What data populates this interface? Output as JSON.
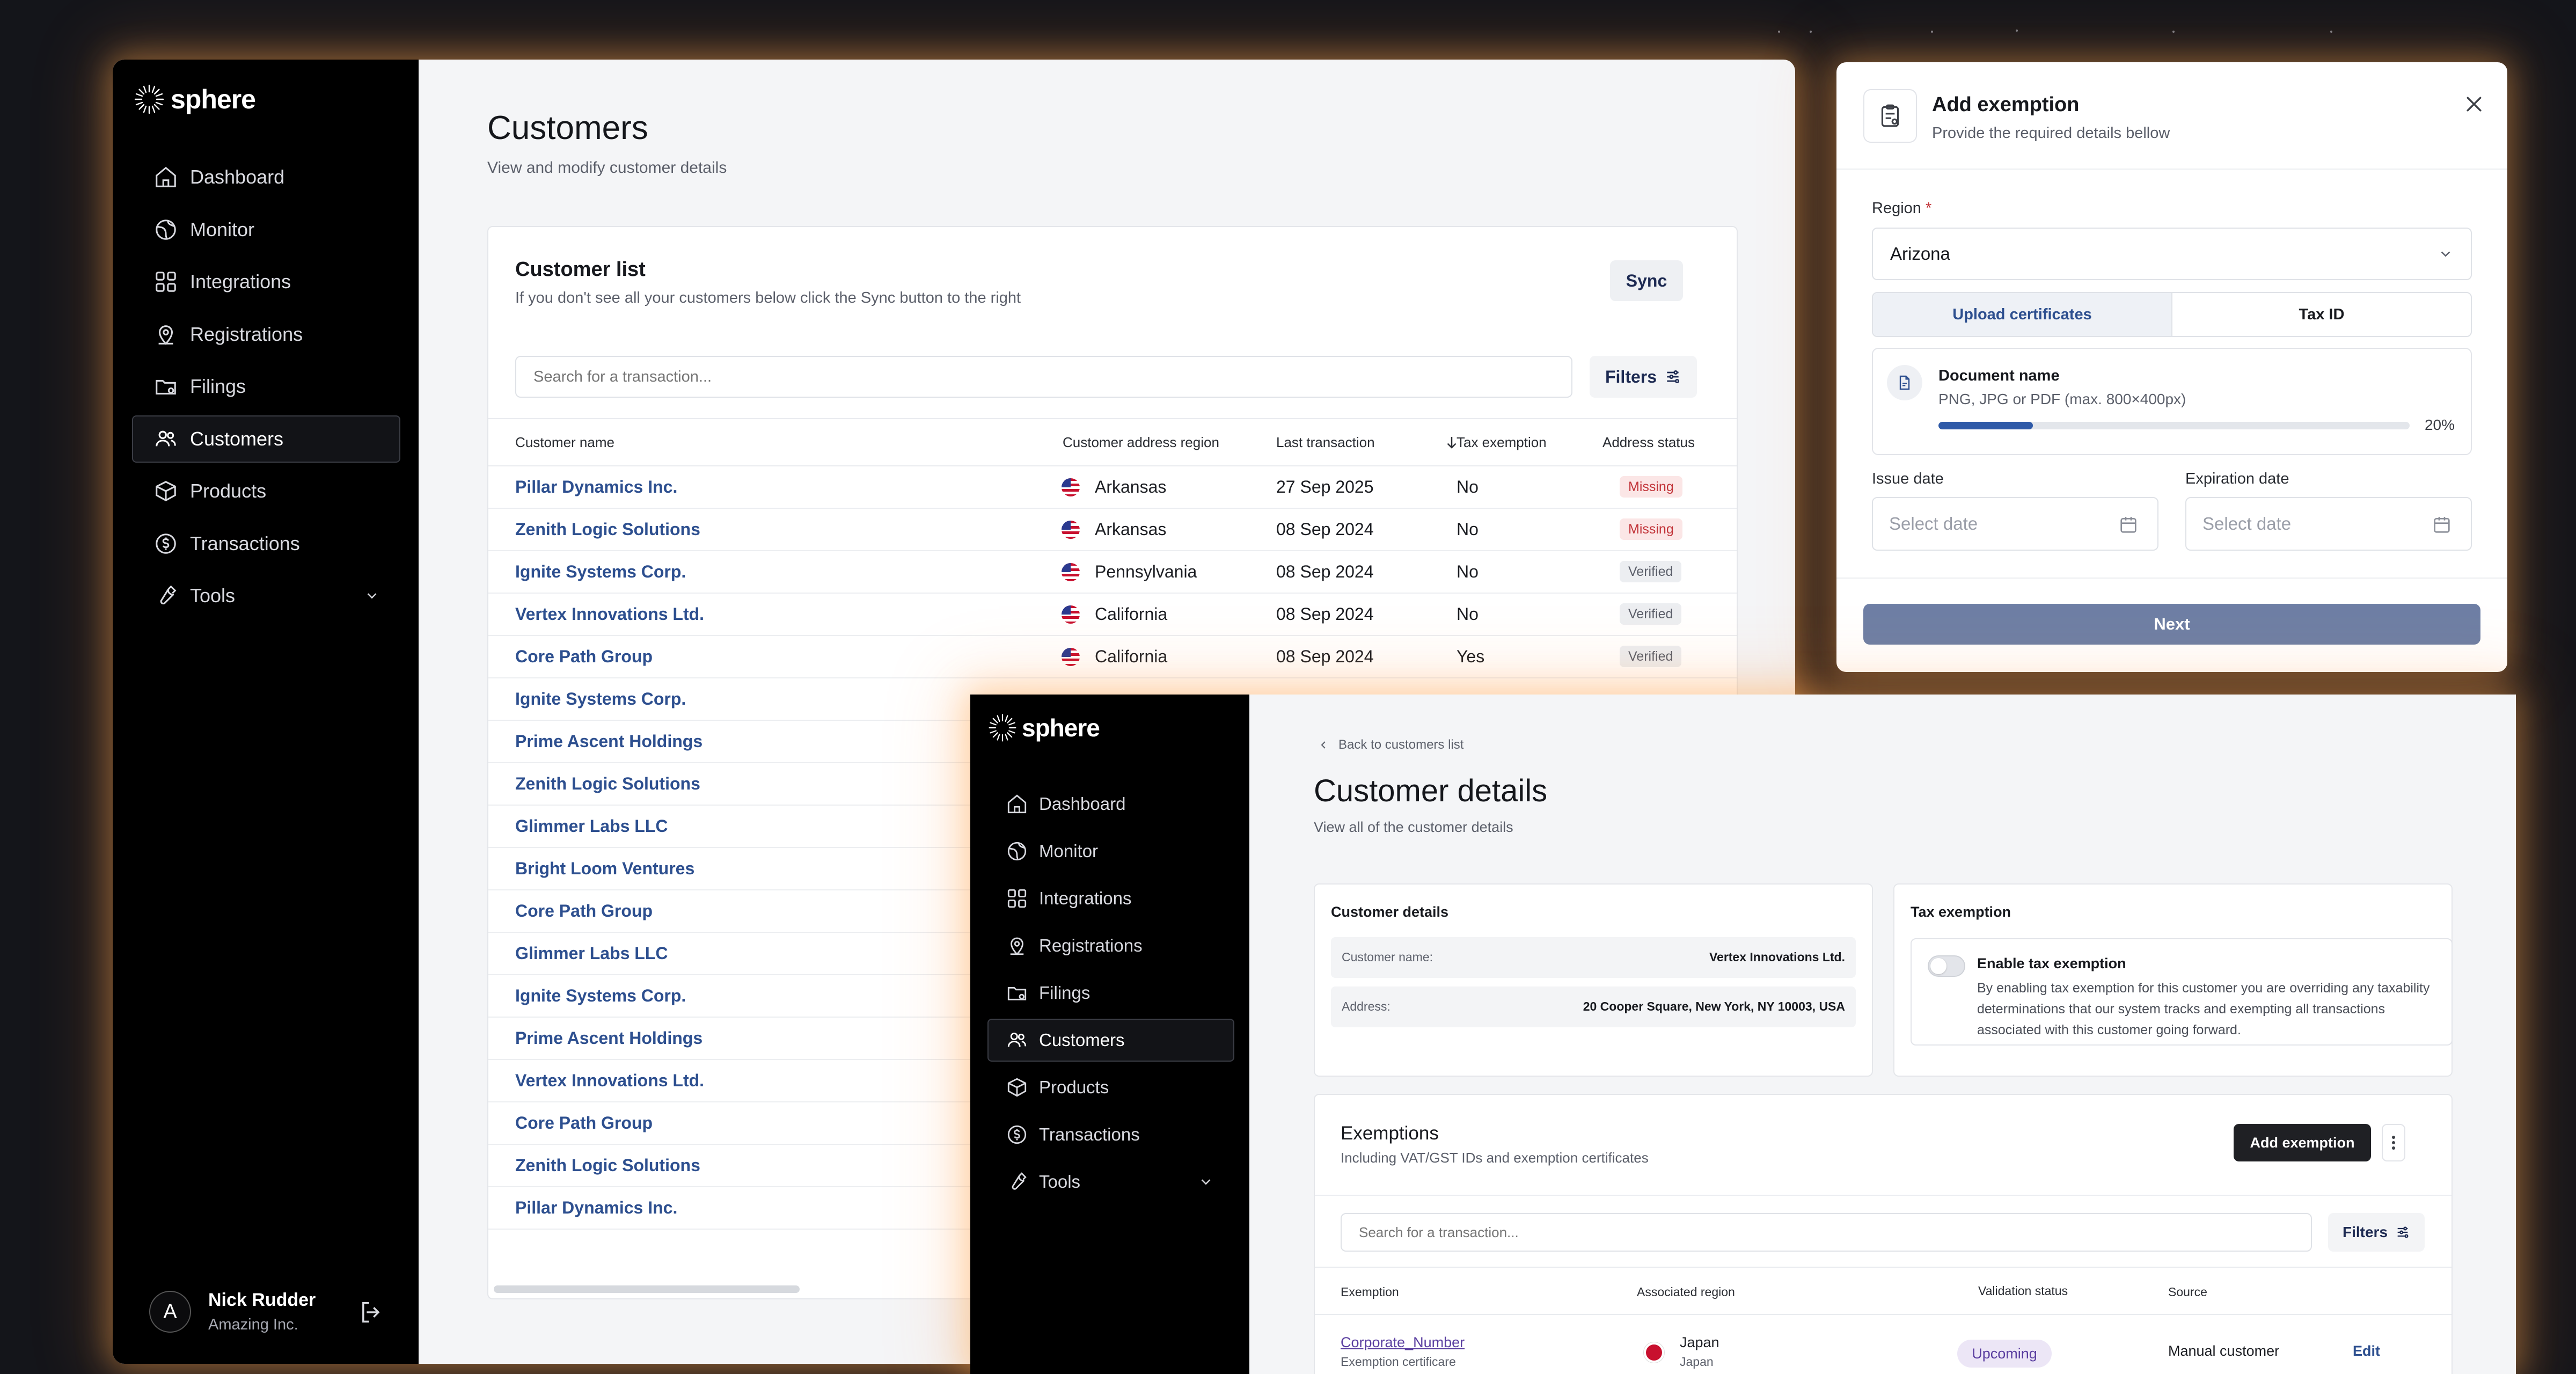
{
  "brand": {
    "name": "sphere"
  },
  "nav": {
    "items": [
      {
        "label": "Dashboard",
        "icon": "home-icon"
      },
      {
        "label": "Monitor",
        "icon": "globe-icon"
      },
      {
        "label": "Integrations",
        "icon": "grid-icon"
      },
      {
        "label": "Registrations",
        "icon": "location-pin-icon"
      },
      {
        "label": "Filings",
        "icon": "folder-icon"
      },
      {
        "label": "Customers",
        "icon": "users-icon"
      },
      {
        "label": "Products",
        "icon": "package-icon"
      },
      {
        "label": "Transactions",
        "icon": "dollar-circle-icon"
      },
      {
        "label": "Tools",
        "icon": "wrench-icon"
      }
    ],
    "active": "Customers"
  },
  "user": {
    "initial": "A",
    "name": "Nick Rudder",
    "org": "Amazing Inc."
  },
  "customers_page": {
    "title": "Customers",
    "subtitle": "View and modify customer details",
    "list": {
      "title": "Customer list",
      "subtitle": "If you don't see all your customers below click the Sync button to the right",
      "sync_label": "Sync",
      "search_placeholder": "Search for a transaction...",
      "filters_label": "Filters",
      "columns": [
        "Customer name",
        "Customer address region",
        "Last transaction",
        "Tax exemption",
        "Address status"
      ],
      "rows": [
        {
          "name": "Pillar Dynamics Inc.",
          "region": "Arkansas",
          "last": "27  Sep 2025",
          "tax": "No",
          "status": "Missing"
        },
        {
          "name": "Zenith Logic Solutions",
          "region": "Arkansas",
          "last": "08  Sep 2024",
          "tax": "No",
          "status": "Missing"
        },
        {
          "name": "Ignite Systems Corp.",
          "region": "Pennsylvania",
          "last": "08  Sep 2024",
          "tax": "No",
          "status": "Verified"
        },
        {
          "name": "Vertex Innovations Ltd.",
          "region": "California",
          "last": "08  Sep 2024",
          "tax": "No",
          "status": "Verified"
        },
        {
          "name": "Core Path Group",
          "region": "California",
          "last": "08  Sep 2024",
          "tax": "Yes",
          "status": "Verified"
        },
        {
          "name": "Ignite Systems Corp."
        },
        {
          "name": "Prime Ascent Holdings"
        },
        {
          "name": "Zenith Logic Solutions"
        },
        {
          "name": "Glimmer Labs LLC"
        },
        {
          "name": "Bright Loom Ventures"
        },
        {
          "name": "Core Path Group"
        },
        {
          "name": "Glimmer Labs LLC"
        },
        {
          "name": "Ignite Systems Corp."
        },
        {
          "name": "Prime Ascent Holdings"
        },
        {
          "name": "Vertex Innovations Ltd."
        },
        {
          "name": "Core Path Group"
        },
        {
          "name": "Zenith Logic Solutions"
        },
        {
          "name": "Pillar Dynamics Inc."
        }
      ]
    }
  },
  "add_exemption": {
    "title": "Add exemption",
    "subtitle": "Provide the required details bellow",
    "region_label": "Region",
    "region_required_mark": "*",
    "region_value": "Arizona",
    "tabs": [
      "Upload certificates",
      "Tax ID"
    ],
    "document": {
      "name": "Document name",
      "hint": "PNG, JPG or PDF (max. 800×400px)",
      "progress_label": "20%",
      "progress_fraction": 0.2
    },
    "issue_date_label": "Issue date",
    "expiration_date_label": "Expiration date",
    "date_placeholder": "Select date",
    "next_label": "Next"
  },
  "customer_details_page": {
    "back_label": "Back to customers list",
    "title": "Customer details",
    "subtitle": "View all of the customer details",
    "details_card": {
      "title": "Customer details",
      "name_key": "Customer name:",
      "name_value": "Vertex Innovations Ltd.",
      "address_key": "Address:",
      "address_value": "20 Cooper Square, New York, NY 10003, USA"
    },
    "tax_card": {
      "title": "Tax exemption",
      "toggle_title": "Enable tax exemption",
      "toggle_desc": "By enabling tax exemption for this customer you are overriding any taxability determinations that our system tracks and exempting all transactions associated with this customer going forward."
    },
    "exemptions": {
      "title": "Exemptions",
      "subtitle": "Including VAT/GST IDs and exemption certificates",
      "add_label": "Add exemption",
      "search_placeholder": "Search for a transaction...",
      "filters_label": "Filters",
      "columns": [
        "Exemption",
        "Associated region",
        "Validation status",
        "Source"
      ],
      "rows": [
        {
          "name": "Corporate_Number",
          "type": "Exemption certificare",
          "region": "Japan",
          "region_sub": "Japan",
          "status": "Upcoming",
          "source": "Manual customer",
          "action": "Edit"
        }
      ]
    }
  }
}
